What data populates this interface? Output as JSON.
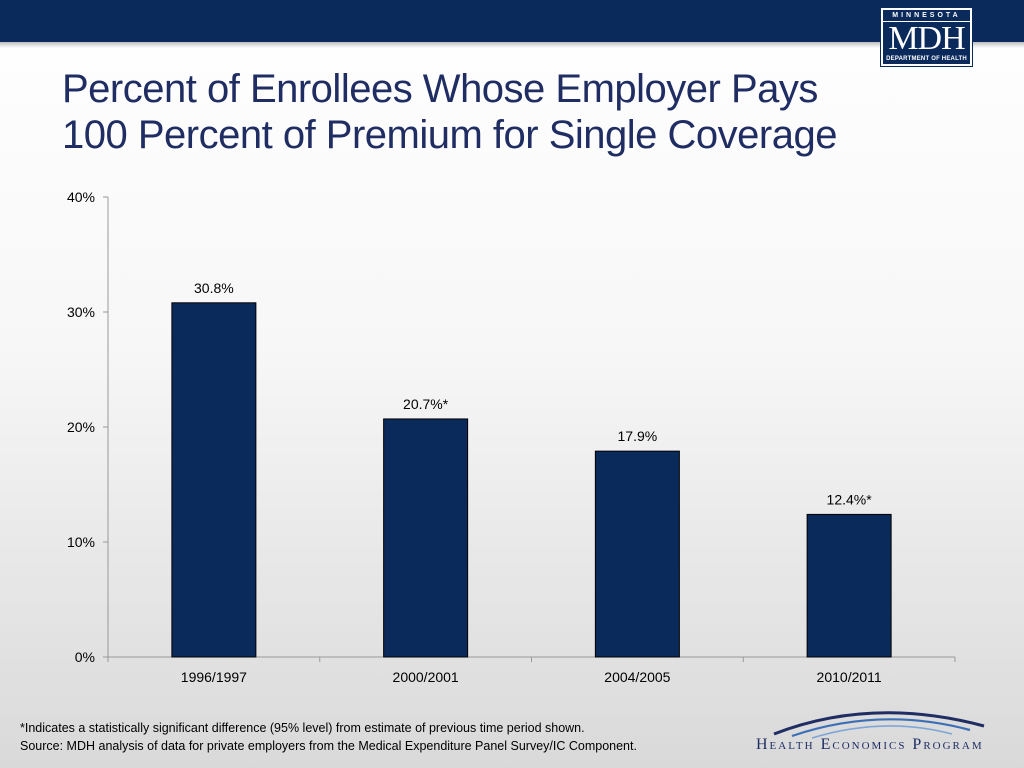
{
  "header": {
    "logo": {
      "top": "MINNESOTA",
      "main": "MDH",
      "bottom": "DEPARTMENT OF HEALTH"
    }
  },
  "title_lines": [
    "Percent of Enrollees Whose Employer Pays",
    "100 Percent of Premium for Single Coverage"
  ],
  "chart_data": {
    "type": "bar",
    "categories": [
      "1996/1997",
      "2000/2001",
      "2004/2005",
      "2010/2011"
    ],
    "values": [
      30.8,
      20.7,
      17.9,
      12.4
    ],
    "data_labels": [
      "30.8%",
      "20.7%*",
      "17.9%",
      "12.4%*"
    ],
    "ylim": [
      0,
      40
    ],
    "yticks": [
      0,
      10,
      20,
      30,
      40
    ],
    "ytick_labels": [
      "0%",
      "10%",
      "20%",
      "30%",
      "40%"
    ],
    "grid": false,
    "bar_color": "#0b2a5c"
  },
  "footnote": {
    "line1": "*Indicates a statistically significant difference (95% level) from estimate of previous time period shown.",
    "line2": "Source: MDH analysis of data for private employers from the Medical Expenditure Panel Survey/IC Component."
  },
  "program": {
    "name": "Health Economics Program"
  },
  "colors": {
    "brand_navy": "#0b2a5c",
    "title": "#1f2d63",
    "accent_arc": "#3b6fb6"
  }
}
